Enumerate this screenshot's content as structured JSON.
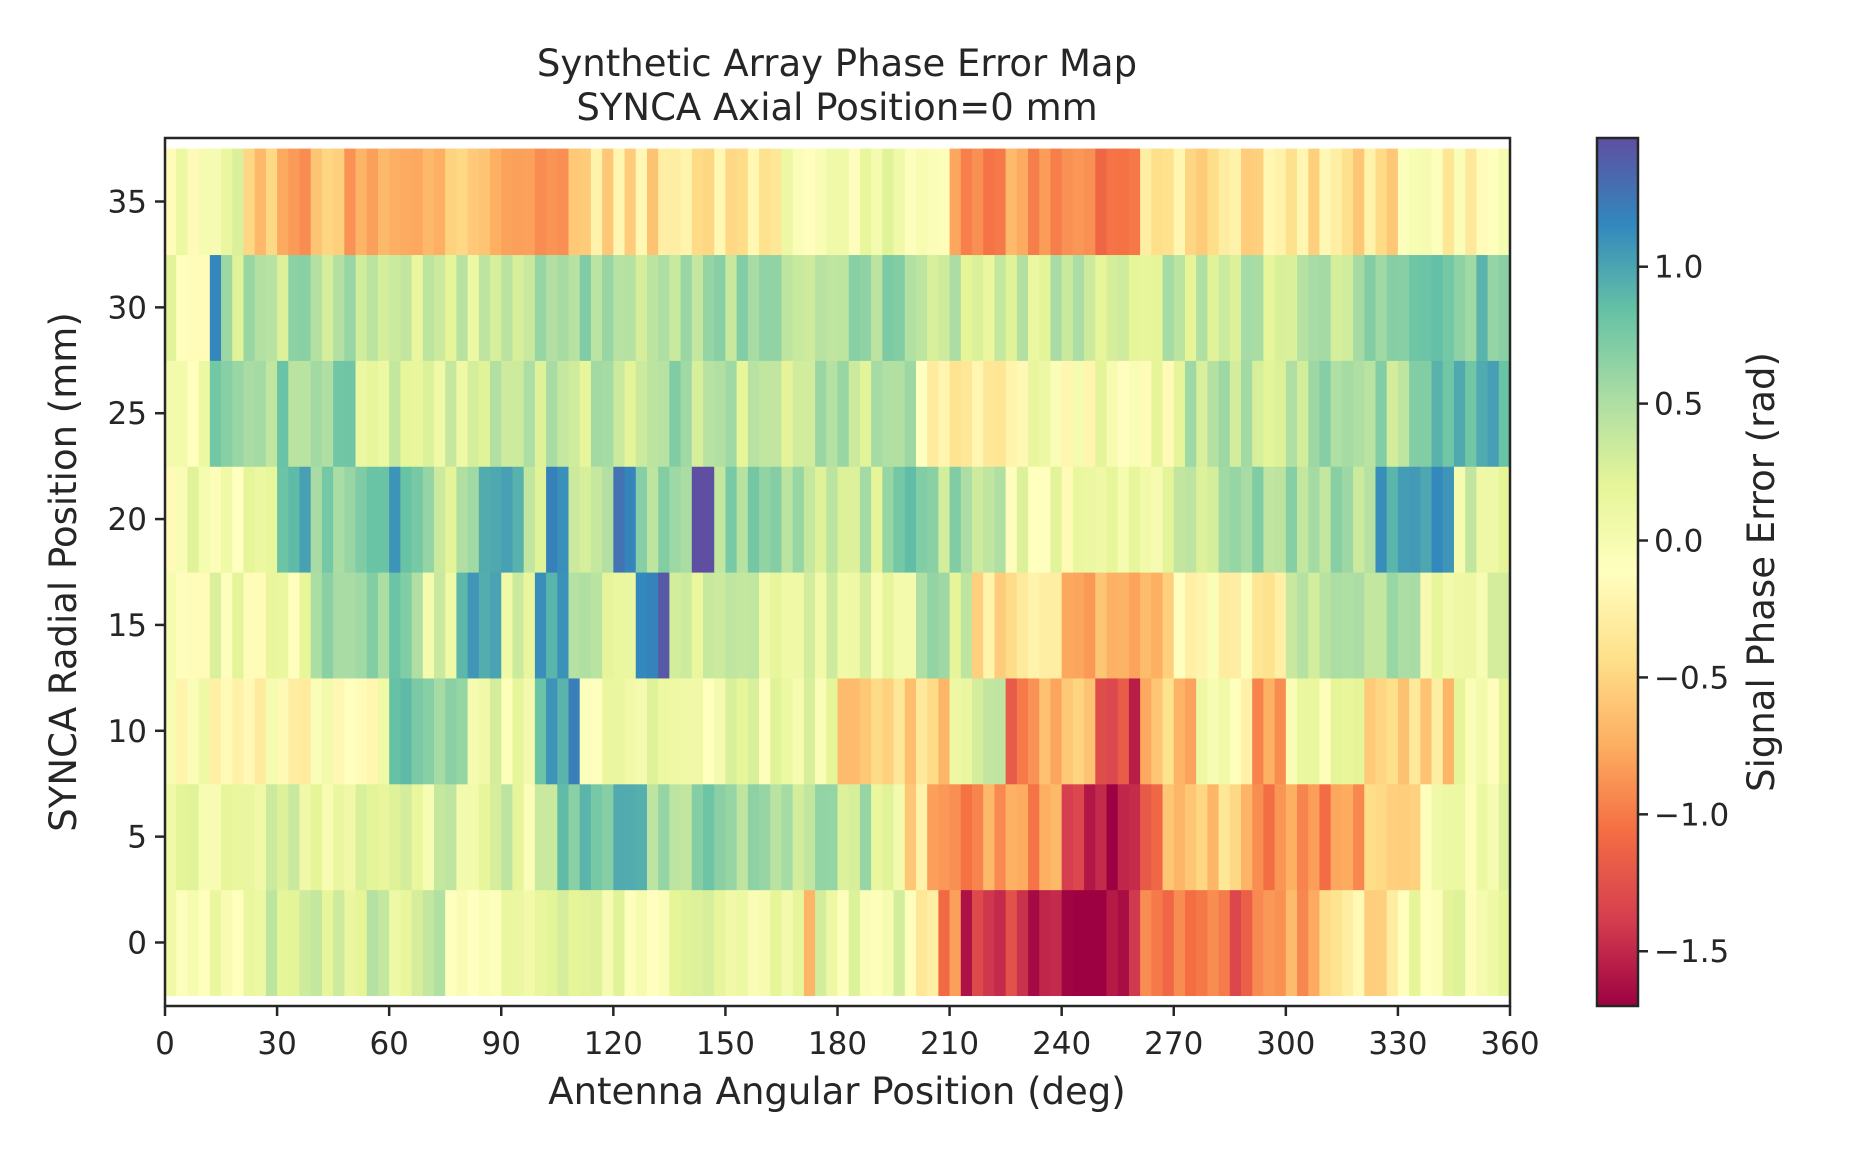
{
  "chart_data": {
    "type": "heatmap",
    "title": "Synthetic Array Phase Error Map",
    "subtitle": "SYNCA Axial Position=0 mm",
    "xlabel": "Antenna Angular Position (deg)",
    "ylabel": "SYNCA Radial Position (mm)",
    "colorbar_label": "Signal Phase Error (rad)",
    "colormap": "Spectral",
    "clim": [
      -1.7,
      1.47
    ],
    "xlim": [
      0,
      360
    ],
    "ylim": [
      -3,
      38
    ],
    "x_ticks": [
      0,
      30,
      60,
      90,
      120,
      150,
      180,
      210,
      240,
      270,
      300,
      330,
      360
    ],
    "x_tick_labels": [
      "0",
      "30",
      "60",
      "90",
      "120",
      "150",
      "180",
      "210",
      "240",
      "270",
      "300",
      "330",
      "360"
    ],
    "y_ticks": [
      0,
      5,
      10,
      15,
      20,
      25,
      30,
      35
    ],
    "y_tick_labels": [
      "0",
      "5",
      "10",
      "15",
      "20",
      "25",
      "30",
      "35"
    ],
    "colorbar_ticks": [
      1.0,
      0.5,
      0.0,
      -0.5,
      -1.0,
      -1.5
    ],
    "colorbar_tick_labels": [
      "1.0",
      "0.5",
      "0.0",
      "−0.5",
      "−1.0",
      "−1.5"
    ],
    "angle_bin_deg": 3,
    "grid": false,
    "rows": [
      {
        "radius_mm": 0,
        "segments": [
          {
            "from": 0,
            "to": 20,
            "value": 0.05
          },
          {
            "from": 20,
            "to": 75,
            "value": 0.3
          },
          {
            "from": 75,
            "to": 170,
            "value": 0.1
          },
          {
            "from": 170,
            "to": 174,
            "value": -0.8
          },
          {
            "from": 174,
            "to": 200,
            "value": 0.1
          },
          {
            "from": 200,
            "to": 206,
            "value": -0.3
          },
          {
            "from": 206,
            "to": 212,
            "value": -1.0
          },
          {
            "from": 212,
            "to": 230,
            "value": -1.4
          },
          {
            "from": 230,
            "to": 262,
            "value": -1.55
          },
          {
            "from": 262,
            "to": 290,
            "value": -1.1
          },
          {
            "from": 290,
            "to": 310,
            "value": -0.8
          },
          {
            "from": 310,
            "to": 330,
            "value": -0.4
          },
          {
            "from": 330,
            "to": 360,
            "value": 0.05
          }
        ]
      },
      {
        "radius_mm": 5,
        "segments": [
          {
            "from": 0,
            "to": 95,
            "value": 0.2
          },
          {
            "from": 95,
            "to": 100,
            "value": 0.05
          },
          {
            "from": 100,
            "to": 105,
            "value": 0.4
          },
          {
            "from": 105,
            "to": 130,
            "value": 0.85
          },
          {
            "from": 130,
            "to": 160,
            "value": 0.6
          },
          {
            "from": 160,
            "to": 190,
            "value": 0.45
          },
          {
            "from": 190,
            "to": 198,
            "value": 0.1
          },
          {
            "from": 198,
            "to": 205,
            "value": -0.4
          },
          {
            "from": 205,
            "to": 240,
            "value": -0.85
          },
          {
            "from": 240,
            "to": 245,
            "value": -1.3
          },
          {
            "from": 245,
            "to": 260,
            "value": -1.7
          },
          {
            "from": 260,
            "to": 268,
            "value": -1.1
          },
          {
            "from": 268,
            "to": 290,
            "value": -0.5
          },
          {
            "from": 290,
            "to": 320,
            "value": -0.95
          },
          {
            "from": 320,
            "to": 335,
            "value": -0.5
          },
          {
            "from": 335,
            "to": 360,
            "value": 0.1
          }
        ]
      },
      {
        "radius_mm": 10,
        "segments": [
          {
            "from": 0,
            "to": 60,
            "value": -0.1
          },
          {
            "from": 60,
            "to": 80,
            "value": 0.7
          },
          {
            "from": 80,
            "to": 100,
            "value": 0.1
          },
          {
            "from": 100,
            "to": 110,
            "value": 1.0
          },
          {
            "from": 110,
            "to": 180,
            "value": 0.1
          },
          {
            "from": 180,
            "to": 210,
            "value": -0.55
          },
          {
            "from": 210,
            "to": 225,
            "value": 0.2
          },
          {
            "from": 225,
            "to": 235,
            "value": -1.0
          },
          {
            "from": 235,
            "to": 248,
            "value": -0.7
          },
          {
            "from": 248,
            "to": 262,
            "value": -1.4
          },
          {
            "from": 262,
            "to": 275,
            "value": -0.6
          },
          {
            "from": 275,
            "to": 290,
            "value": -0.1
          },
          {
            "from": 290,
            "to": 300,
            "value": -0.8
          },
          {
            "from": 300,
            "to": 320,
            "value": 0.1
          },
          {
            "from": 320,
            "to": 345,
            "value": -0.5
          },
          {
            "from": 345,
            "to": 360,
            "value": 0.05
          }
        ]
      },
      {
        "radius_mm": 15,
        "segments": [
          {
            "from": 0,
            "to": 38,
            "value": 0.05
          },
          {
            "from": 38,
            "to": 70,
            "value": 0.7
          },
          {
            "from": 70,
            "to": 78,
            "value": 0.2
          },
          {
            "from": 78,
            "to": 90,
            "value": 0.9
          },
          {
            "from": 90,
            "to": 100,
            "value": 0.2
          },
          {
            "from": 100,
            "to": 108,
            "value": 1.1
          },
          {
            "from": 108,
            "to": 125,
            "value": 0.3
          },
          {
            "from": 125,
            "to": 135,
            "value": 1.25
          },
          {
            "from": 135,
            "to": 180,
            "value": 0.2
          },
          {
            "from": 180,
            "to": 200,
            "value": 0.2
          },
          {
            "from": 200,
            "to": 215,
            "value": 0.4
          },
          {
            "from": 215,
            "to": 240,
            "value": -0.4
          },
          {
            "from": 240,
            "to": 270,
            "value": -0.7
          },
          {
            "from": 270,
            "to": 300,
            "value": -0.2
          },
          {
            "from": 300,
            "to": 320,
            "value": 0.3
          },
          {
            "from": 320,
            "to": 335,
            "value": 0.6
          },
          {
            "from": 335,
            "to": 360,
            "value": 0.1
          }
        ]
      },
      {
        "radius_mm": 20,
        "segments": [
          {
            "from": 0,
            "to": 30,
            "value": 0.05
          },
          {
            "from": 30,
            "to": 40,
            "value": 1.0
          },
          {
            "from": 40,
            "to": 60,
            "value": 0.6
          },
          {
            "from": 60,
            "to": 70,
            "value": 0.9
          },
          {
            "from": 70,
            "to": 85,
            "value": 0.4
          },
          {
            "from": 85,
            "to": 95,
            "value": 1.0
          },
          {
            "from": 95,
            "to": 102,
            "value": 0.4
          },
          {
            "from": 102,
            "to": 108,
            "value": 1.1
          },
          {
            "from": 108,
            "to": 120,
            "value": 0.5
          },
          {
            "from": 120,
            "to": 127,
            "value": 1.3
          },
          {
            "from": 127,
            "to": 140,
            "value": 0.6
          },
          {
            "from": 140,
            "to": 148,
            "value": 1.4
          },
          {
            "from": 148,
            "to": 165,
            "value": 0.6
          },
          {
            "from": 165,
            "to": 195,
            "value": 0.4
          },
          {
            "from": 195,
            "to": 205,
            "value": 0.8
          },
          {
            "from": 205,
            "to": 225,
            "value": 0.5
          },
          {
            "from": 225,
            "to": 270,
            "value": 0.05
          },
          {
            "from": 270,
            "to": 290,
            "value": 0.4
          },
          {
            "from": 290,
            "to": 325,
            "value": 0.5
          },
          {
            "from": 325,
            "to": 345,
            "value": 1.0
          },
          {
            "from": 345,
            "to": 360,
            "value": 0.2
          }
        ]
      },
      {
        "radius_mm": 25,
        "segments": [
          {
            "from": 0,
            "to": 12,
            "value": 0.05
          },
          {
            "from": 12,
            "to": 50,
            "value": 0.6
          },
          {
            "from": 50,
            "to": 90,
            "value": 0.3
          },
          {
            "from": 90,
            "to": 130,
            "value": 0.4
          },
          {
            "from": 130,
            "to": 150,
            "value": 0.5
          },
          {
            "from": 150,
            "to": 200,
            "value": 0.4
          },
          {
            "from": 200,
            "to": 230,
            "value": -0.3
          },
          {
            "from": 230,
            "to": 270,
            "value": 0.0
          },
          {
            "from": 270,
            "to": 300,
            "value": 0.4
          },
          {
            "from": 300,
            "to": 340,
            "value": 0.5
          },
          {
            "from": 340,
            "to": 360,
            "value": 1.0
          }
        ]
      },
      {
        "radius_mm": 30,
        "segments": [
          {
            "from": 0,
            "to": 12,
            "value": 0.05
          },
          {
            "from": 12,
            "to": 15,
            "value": 1.0
          },
          {
            "from": 15,
            "to": 60,
            "value": 0.45
          },
          {
            "from": 60,
            "to": 100,
            "value": 0.3
          },
          {
            "from": 100,
            "to": 150,
            "value": 0.5
          },
          {
            "from": 150,
            "to": 200,
            "value": 0.55
          },
          {
            "from": 200,
            "to": 230,
            "value": 0.3
          },
          {
            "from": 230,
            "to": 270,
            "value": 0.35
          },
          {
            "from": 270,
            "to": 320,
            "value": 0.4
          },
          {
            "from": 320,
            "to": 360,
            "value": 0.7
          }
        ]
      },
      {
        "radius_mm": 35,
        "segments": [
          {
            "from": 0,
            "to": 20,
            "value": 0.05
          },
          {
            "from": 20,
            "to": 110,
            "value": -0.7
          },
          {
            "from": 110,
            "to": 165,
            "value": -0.4
          },
          {
            "from": 165,
            "to": 210,
            "value": 0.1
          },
          {
            "from": 210,
            "to": 260,
            "value": -0.9
          },
          {
            "from": 260,
            "to": 330,
            "value": -0.4
          },
          {
            "from": 330,
            "to": 360,
            "value": -0.2
          }
        ]
      }
    ]
  }
}
